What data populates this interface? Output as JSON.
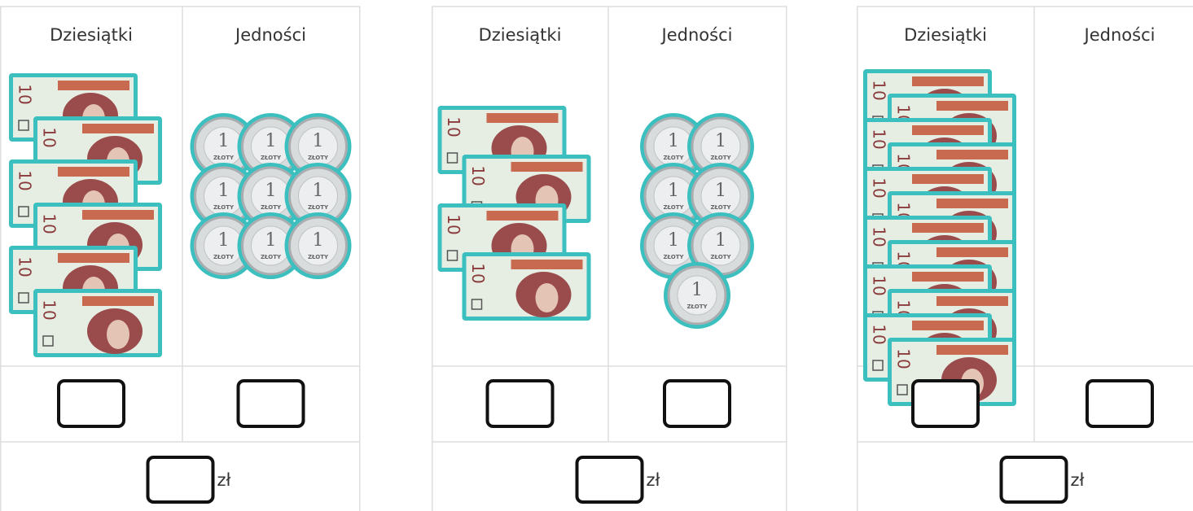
{
  "note_label": "10",
  "coin_label": "1",
  "coin_word": "ZŁOTY",
  "panels": [
    {
      "tens_header": "Dziesiątki",
      "ones_header": "Jedności",
      "tens": 6,
      "ones": 9,
      "unit": "zł"
    },
    {
      "tens_header": "Dziesiątki",
      "ones_header": "Jedności",
      "tens": 4,
      "ones": 7,
      "unit": "zł"
    },
    {
      "tens_header": "Dziesiątki",
      "ones_header": "Jedności",
      "tens": 12,
      "ones": 0,
      "unit": "zł"
    }
  ]
}
